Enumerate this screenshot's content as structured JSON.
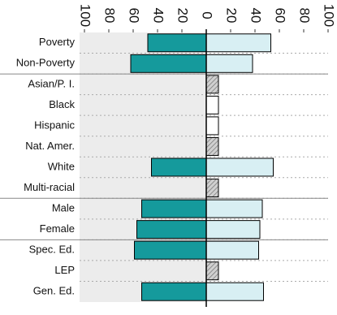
{
  "chart_data": {
    "type": "diverging-bar",
    "categories": [
      "Poverty",
      "Non-Poverty",
      "Asian/P. I.",
      "Black",
      "Hispanic",
      "Nat. Amer.",
      "White",
      "Multi-racial",
      "Male",
      "Female",
      "Spec. Ed.",
      "LEP",
      "Gen. Ed."
    ],
    "series": [
      {
        "color": "#159a9c",
        "values": [
          -48,
          -62,
          null,
          null,
          null,
          null,
          -45,
          null,
          -53,
          -57,
          -59,
          null,
          -53
        ]
      },
      {
        "color": "#d8eff3",
        "values": [
          53,
          38,
          null,
          null,
          null,
          null,
          55,
          null,
          46,
          44,
          43,
          null,
          47
        ]
      },
      {
        "color": "#aaaaaa",
        "pattern": "hatch",
        "values": [
          null,
          null,
          10,
          null,
          null,
          10,
          null,
          10,
          null,
          null,
          null,
          10,
          null
        ]
      },
      {
        "color": "#ffffff",
        "values": [
          null,
          null,
          null,
          10,
          10,
          null,
          null,
          null,
          null,
          null,
          null,
          null,
          null
        ]
      }
    ],
    "xlim": [
      -100,
      100
    ],
    "xticks": [
      {
        "value": -100,
        "label": "100"
      },
      {
        "value": -80,
        "label": "80"
      },
      {
        "value": -60,
        "label": "60"
      },
      {
        "value": -40,
        "label": "40"
      },
      {
        "value": -20,
        "label": "20"
      },
      0,
      20,
      40,
      60,
      80,
      100
    ]
  }
}
